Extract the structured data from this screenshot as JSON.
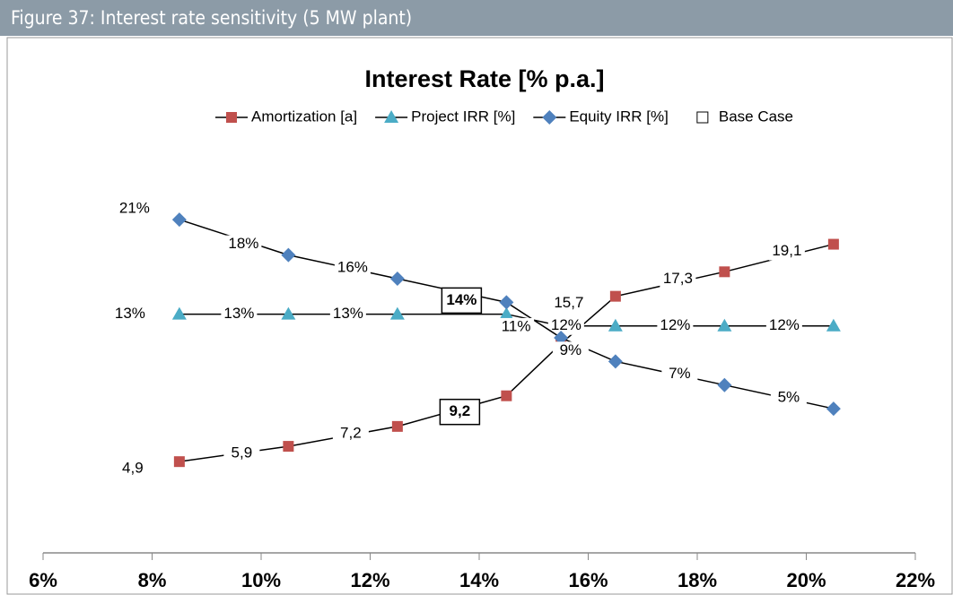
{
  "header": {
    "title": "Figure 37: Interest rate sensitivity (5 MW plant)"
  },
  "chart_data": {
    "type": "line",
    "title": "Interest Rate [% p.a.]",
    "x": [
      8.5,
      10.5,
      12.5,
      14.5,
      15.5,
      16.5,
      18.5,
      20.5
    ],
    "series": [
      {
        "name": "Amortization [a]",
        "color": "#c0504d",
        "marker": "square",
        "axis": "y2",
        "values": [
          4.9,
          5.9,
          7.2,
          9.2,
          12.6,
          15.7,
          17.3,
          19.1
        ],
        "value_labels": [
          "4,9",
          "5,9",
          "7,2",
          "9,2",
          null,
          "15,7",
          "17,3",
          "19,1"
        ]
      },
      {
        "name": "Project IRR [%]",
        "color": "#4bacc6",
        "marker": "triangle",
        "values": [
          13,
          13,
          13,
          13,
          12,
          12,
          12,
          12
        ],
        "value_labels": [
          "13%",
          "13%",
          "13%",
          null,
          null,
          "12%",
          "12%",
          "12%"
        ]
      },
      {
        "name": "Equity IRR [%]",
        "color": "#4f81bd",
        "marker": "diamond",
        "values": [
          21,
          18,
          16,
          14,
          11,
          9,
          7,
          5
        ],
        "value_labels": [
          "21%",
          "18%",
          "16%",
          "14%",
          "11%",
          "9%",
          "7%",
          "5%"
        ]
      }
    ],
    "base_case": {
      "name": "Base Case",
      "x": 14.5
    },
    "xlim": [
      6,
      22
    ],
    "xticks": [
      {
        "value": 6,
        "label": "6%"
      },
      {
        "value": 8,
        "label": "8%"
      },
      {
        "value": 10,
        "label": "10%"
      },
      {
        "value": 12,
        "label": "12%"
      },
      {
        "value": 14,
        "label": "14%"
      },
      {
        "value": 16,
        "label": "16%"
      },
      {
        "value": 18,
        "label": "18%"
      },
      {
        "value": 20,
        "label": "20%"
      },
      {
        "value": 22,
        "label": "22%"
      }
    ],
    "ylim": [
      0,
      32
    ],
    "y2lim": [
      4.5,
      29.2
    ],
    "grid": false
  }
}
